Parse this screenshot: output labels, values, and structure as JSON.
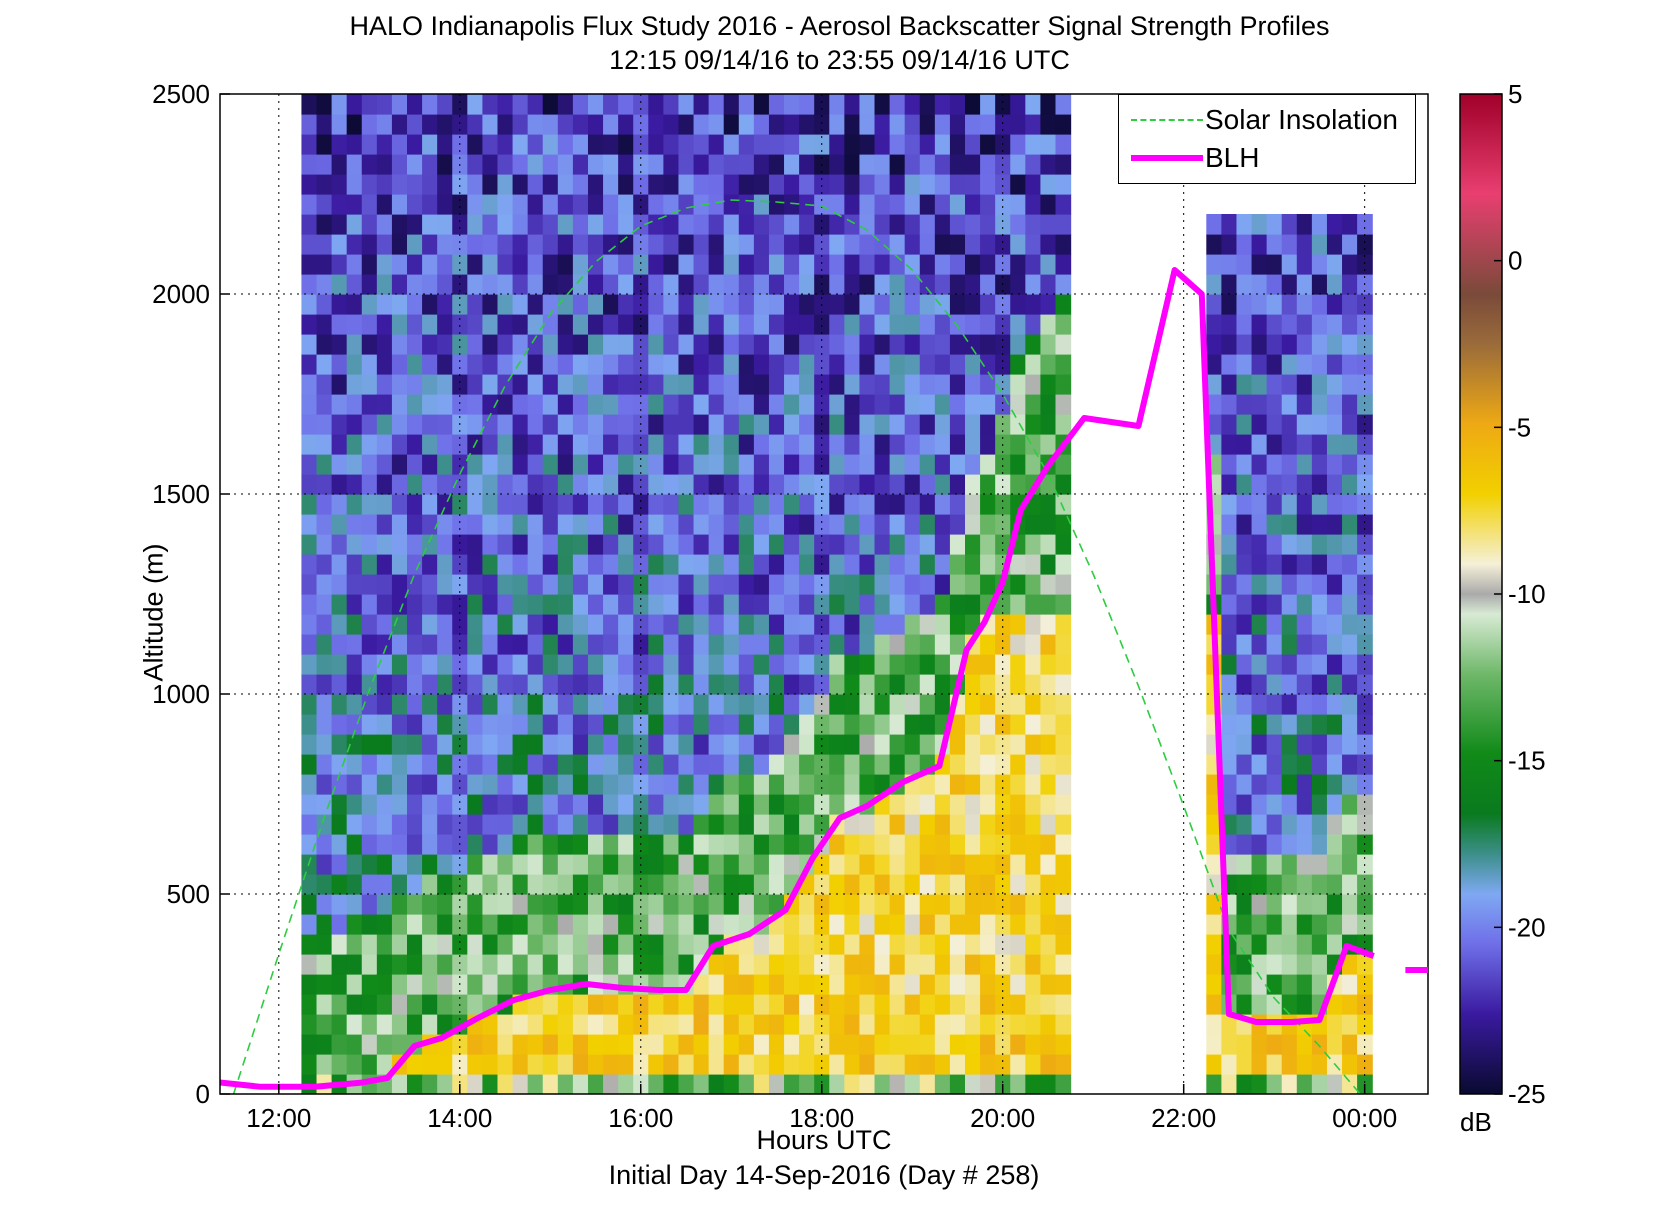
{
  "title_line1": "HALO Indianapolis Flux Study 2016 - Aerosol Backscatter Signal Strength Profiles",
  "title_line2": "12:15 09/14/16 to 23:55 09/14/16  UTC",
  "xlabel": "Hours UTC",
  "xlabel2": "Initial Day 14-Sep-2016 (Day # 258)",
  "ylabel": "Altitude (m)",
  "colorbar_unit": "dB",
  "legend": {
    "solar": "Solar Insolation",
    "blh": "BLH"
  },
  "colors": {
    "blh": "#ff00ff",
    "solar": "#2ecc40"
  },
  "chart_data": {
    "type": "heatmap",
    "title": "HALO Indianapolis Flux Study 2016 - Aerosol Backscatter Signal Strength Profiles",
    "subtitle": "12:15 09/14/16 to 23:55 09/14/16  UTC",
    "xlabel": "Hours UTC",
    "ylabel": "Altitude (m)",
    "xlim": [
      11.35,
      24.7
    ],
    "ylim": [
      0,
      2500
    ],
    "xticks": [
      12,
      14,
      16,
      18,
      20,
      22,
      24
    ],
    "xtick_labels": [
      "12:00",
      "14:00",
      "16:00",
      "18:00",
      "20:00",
      "22:00",
      "00:00"
    ],
    "yticks": [
      0,
      500,
      1000,
      1500,
      2000,
      2500
    ],
    "colorbar": {
      "ticks": [
        -25,
        -20,
        -15,
        -10,
        -5,
        0,
        5
      ],
      "label": "dB",
      "range": [
        -25,
        5
      ]
    },
    "grid": true,
    "legend_position": "top-right",
    "heatmap_time_segments": [
      [
        12.25,
        20.75
      ],
      [
        22.25,
        23.95
      ]
    ],
    "series": [
      {
        "name": "BLH",
        "x": [
          11.3,
          11.8,
          12.4,
          12.9,
          13.2,
          13.5,
          13.8,
          14.2,
          14.6,
          15.0,
          15.4,
          15.8,
          16.2,
          16.5,
          16.8,
          17.2,
          17.6,
          17.9,
          18.2,
          18.5,
          18.9,
          19.3,
          19.6,
          19.8,
          20.0,
          20.2,
          20.5,
          20.9,
          21.2,
          21.5,
          21.9,
          22.2,
          22.5,
          22.8,
          23.2,
          23.5,
          23.8,
          24.1,
          24.3,
          24.45
        ],
        "y": [
          30,
          18,
          18,
          28,
          40,
          120,
          140,
          190,
          235,
          260,
          275,
          265,
          260,
          260,
          370,
          400,
          460,
          590,
          690,
          720,
          780,
          820,
          1110,
          1180,
          1280,
          1460,
          1570,
          1690,
          1680,
          1670,
          2060,
          2000,
          200,
          180,
          180,
          185,
          370,
          345,
          null,
          null
        ]
      },
      {
        "name": "Solar Insolation",
        "x": [
          11.5,
          12.0,
          12.5,
          13.0,
          13.5,
          14.0,
          14.5,
          15.0,
          15.5,
          16.0,
          16.5,
          17.0,
          17.5,
          18.0,
          18.5,
          19.0,
          19.5,
          20.0,
          20.5,
          21.0,
          21.5,
          22.0,
          22.5,
          23.0,
          23.5,
          23.95
        ],
        "y": [
          0,
          350,
          690,
          1010,
          1300,
          1550,
          1770,
          1950,
          2080,
          2170,
          2215,
          2235,
          2230,
          2220,
          2160,
          2060,
          1920,
          1750,
          1550,
          1300,
          1020,
          720,
          410,
          240,
          120,
          0
        ]
      }
    ]
  }
}
